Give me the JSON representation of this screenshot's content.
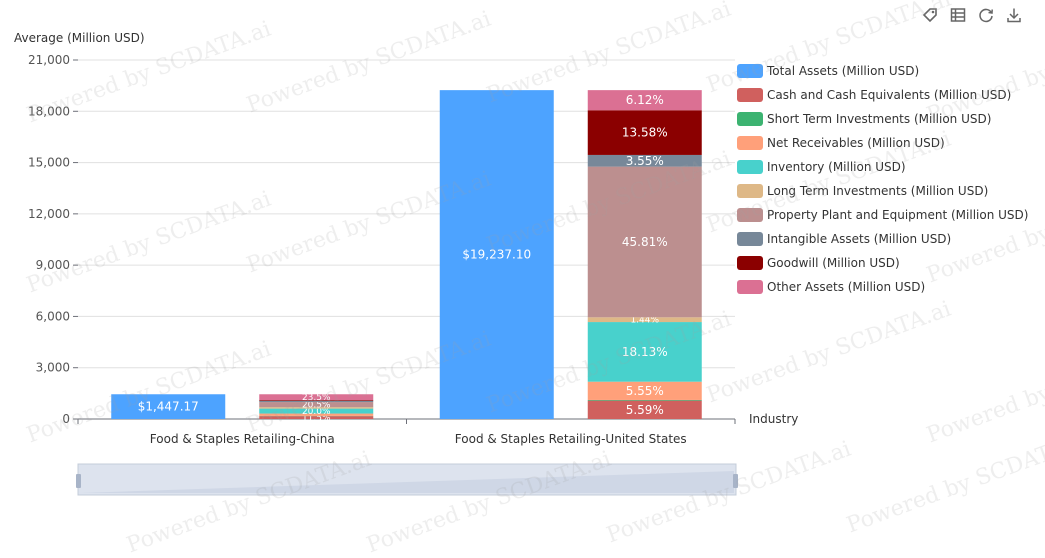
{
  "toolbar": {
    "icons": [
      "tag-icon",
      "data-view-icon",
      "refresh-icon",
      "download-icon"
    ]
  },
  "watermark_text": "Powered by SCDATA.ai",
  "chart_data": {
    "type": "bar",
    "ylabel": "Average (Million USD)",
    "xlabel": "Industry",
    "ylim": [
      0,
      21000
    ],
    "yticks": [
      0,
      3000,
      6000,
      9000,
      12000,
      15000,
      18000,
      21000
    ],
    "ytick_labels": [
      "0",
      "3,000",
      "6,000",
      "9,000",
      "12,000",
      "15,000",
      "18,000",
      "21,000"
    ],
    "grid": true,
    "legend_position": "right",
    "categories": [
      "Food & Staples Retailing-China",
      "Food & Staples Retailing-United States"
    ],
    "total_series": {
      "name": "Total Assets (Million USD)",
      "color": "#4DA3FF",
      "values": [
        1447.17,
        19237.1
      ],
      "labels": [
        "$1,447.17",
        "$19,237.10"
      ]
    },
    "stack_series": [
      {
        "name": "Cash and Cash Equivalents (Million USD)",
        "color": "#D0605E",
        "values": [
          11.5,
          5.59
        ],
        "labels": [
          "11.5%",
          "5.59%"
        ]
      },
      {
        "name": "Short Term Investments (Million USD)",
        "color": "#3CB371",
        "values": [
          1.0,
          0.2
        ],
        "labels": [
          "",
          ""
        ]
      },
      {
        "name": "Net Receivables (Million USD)",
        "color": "#FFA07A",
        "values": [
          9.5,
          5.55
        ],
        "labels": [
          "",
          "5.55%"
        ]
      },
      {
        "name": "Inventory (Million USD)",
        "color": "#48D1CC",
        "values": [
          20.0,
          18.13
        ],
        "labels": [
          "20.0%",
          "18.13%"
        ]
      },
      {
        "name": "Long Term Investments (Million USD)",
        "color": "#DEB887",
        "values": [
          6.0,
          1.44
        ],
        "labels": [
          "",
          "1.44%"
        ]
      },
      {
        "name": "Property Plant and Equipment (Million USD)",
        "color": "#BC8F8F",
        "values": [
          20.5,
          45.81
        ],
        "labels": [
          "20.5%",
          "45.81%"
        ]
      },
      {
        "name": "Intangible Assets (Million USD)",
        "color": "#778899",
        "values": [
          5.0,
          3.55
        ],
        "labels": [
          "",
          "3.55%"
        ]
      },
      {
        "name": "Goodwill (Million USD)",
        "color": "#8B0000",
        "values": [
          3.0,
          13.58
        ],
        "labels": [
          "",
          "13.58%"
        ]
      },
      {
        "name": "Other Assets (Million USD)",
        "color": "#DB7093",
        "values": [
          23.5,
          6.12
        ],
        "labels": [
          "23.5%",
          "6.12%"
        ]
      }
    ]
  }
}
